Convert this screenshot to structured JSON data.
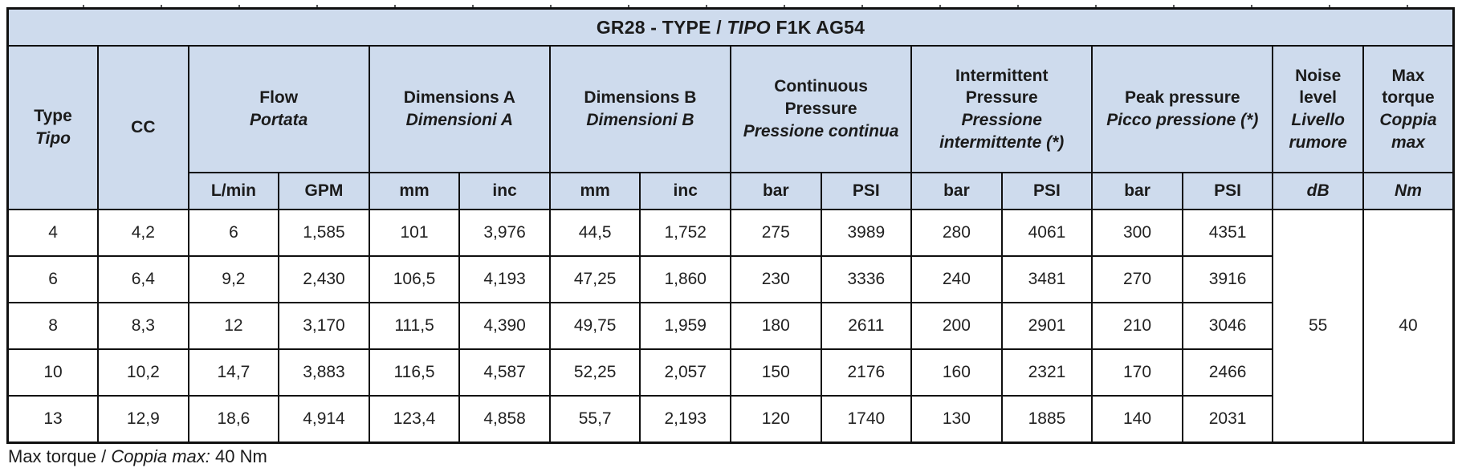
{
  "colors": {
    "header_bg": "#cedbed",
    "border": "#101010",
    "text": "#1b1b1b"
  },
  "title": {
    "part1": "GR28 - TYPE / ",
    "italic": "TIPO",
    "part3": " F1K AG54"
  },
  "columns": {
    "type": {
      "en": "Type",
      "it": "Tipo"
    },
    "cc": {
      "en": "CC"
    },
    "groups": [
      {
        "en": "Flow",
        "it": "Portata",
        "units": [
          "L/min",
          "GPM"
        ]
      },
      {
        "en": "Dimensions A",
        "it": "Dimensioni A",
        "units": [
          "mm",
          "inc"
        ]
      },
      {
        "en": "Dimensions B",
        "it": "Dimensioni B",
        "units": [
          "mm",
          "inc"
        ]
      },
      {
        "en": "Continuous Pressure",
        "it": "Pressione continua",
        "units": [
          "bar",
          "PSI"
        ]
      },
      {
        "en": "Intermittent Pressure",
        "it": "Pressione intermittente (*)",
        "units": [
          "bar",
          "PSI"
        ]
      },
      {
        "en": "Peak pressure",
        "it": "Picco pressione (*)",
        "units": [
          "bar",
          "PSI"
        ]
      }
    ],
    "noise": {
      "en": "Noise level",
      "it": "Livello rumore",
      "unit": "dB"
    },
    "torque": {
      "en": "Max torque",
      "it": "Coppia max",
      "unit": "Nm"
    }
  },
  "rows": [
    {
      "type": "4",
      "cc": "4,2",
      "values": [
        "6",
        "1,585",
        "101",
        "3,976",
        "44,5",
        "1,752",
        "275",
        "3989",
        "280",
        "4061",
        "300",
        "4351"
      ]
    },
    {
      "type": "6",
      "cc": "6,4",
      "values": [
        "9,2",
        "2,430",
        "106,5",
        "4,193",
        "47,25",
        "1,860",
        "230",
        "3336",
        "240",
        "3481",
        "270",
        "3916"
      ]
    },
    {
      "type": "8",
      "cc": "8,3",
      "values": [
        "12",
        "3,170",
        "111,5",
        "4,390",
        "49,75",
        "1,959",
        "180",
        "2611",
        "200",
        "2901",
        "210",
        "3046"
      ]
    },
    {
      "type": "10",
      "cc": "10,2",
      "values": [
        "14,7",
        "3,883",
        "116,5",
        "4,587",
        "52,25",
        "2,057",
        "150",
        "2176",
        "160",
        "2321",
        "170",
        "2466"
      ]
    },
    {
      "type": "13",
      "cc": "12,9",
      "values": [
        "18,6",
        "4,914",
        "123,4",
        "4,858",
        "55,7",
        "2,193",
        "120",
        "1740",
        "130",
        "1885",
        "140",
        "2031"
      ]
    }
  ],
  "noise_value": "55",
  "torque_value": "40",
  "footer": {
    "part1": "Max torque / ",
    "italic": "Coppia max:",
    "part3": " 40 Nm"
  }
}
